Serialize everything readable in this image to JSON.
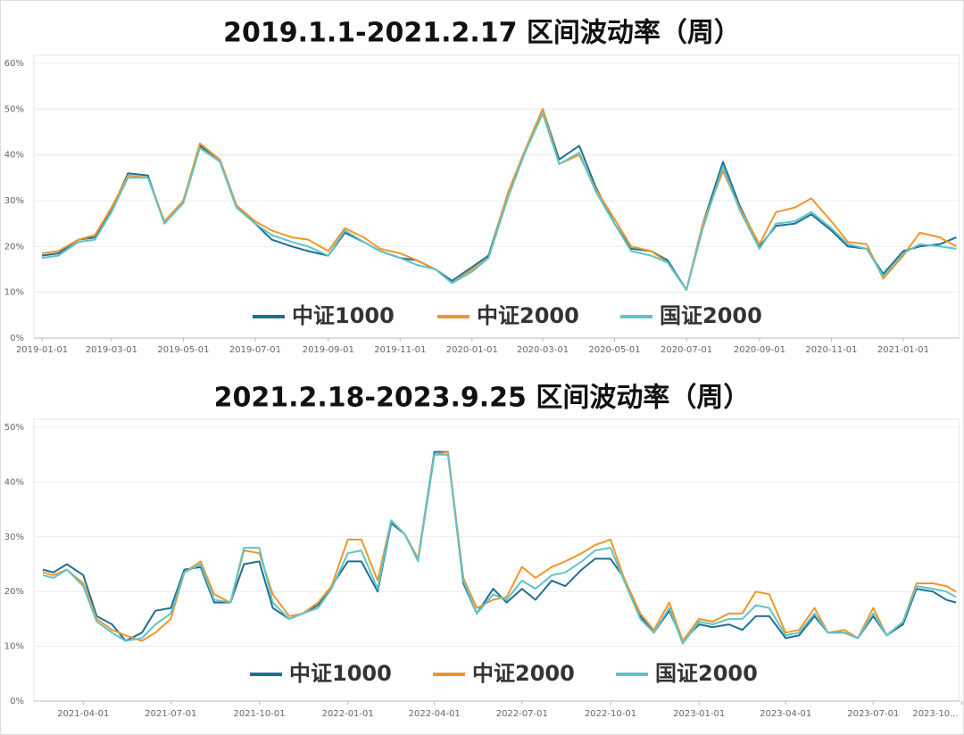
{
  "chart_data": [
    {
      "type": "line",
      "title": "2019.1.1-2021.2.17 区间波动率（周）",
      "x": [
        "2019-01-01",
        "2019-01-15",
        "2019-02-01",
        "2019-02-15",
        "2019-03-01",
        "2019-03-15",
        "2019-04-01",
        "2019-04-15",
        "2019-05-01",
        "2019-05-15",
        "2019-06-01",
        "2019-06-15",
        "2019-07-01",
        "2019-07-15",
        "2019-08-01",
        "2019-08-15",
        "2019-09-01",
        "2019-09-15",
        "2019-10-01",
        "2019-10-15",
        "2019-11-01",
        "2019-11-15",
        "2019-12-01",
        "2019-12-15",
        "2020-01-01",
        "2020-01-15",
        "2020-02-01",
        "2020-02-15",
        "2020-03-01",
        "2020-03-15",
        "2020-04-01",
        "2020-04-15",
        "2020-05-01",
        "2020-05-15",
        "2020-06-01",
        "2020-06-15",
        "2020-07-01",
        "2020-07-15",
        "2020-08-01",
        "2020-08-15",
        "2020-09-01",
        "2020-09-15",
        "2020-10-01",
        "2020-10-15",
        "2020-11-01",
        "2020-11-15",
        "2020-12-01",
        "2020-12-15",
        "2021-01-01",
        "2021-01-15",
        "2021-02-01",
        "2021-02-15"
      ],
      "series": [
        {
          "name": "中证1000",
          "color": "#1f6e94",
          "values": [
            18,
            18.5,
            21.5,
            22,
            28,
            36,
            35.5,
            25,
            30,
            42,
            39,
            29,
            25,
            21.5,
            20,
            19,
            18,
            23,
            21,
            19,
            17.5,
            17,
            15,
            12.5,
            15.5,
            18,
            32,
            41,
            50,
            39,
            42,
            33,
            25,
            19.5,
            19,
            17,
            10.5,
            25,
            38.5,
            29,
            20,
            24.5,
            25,
            27,
            23.5,
            20,
            19.5,
            14,
            19,
            20,
            20.5,
            22
          ]
        },
        {
          "name": "中证2000",
          "color": "#f0962a",
          "values": [
            18.5,
            19,
            21.5,
            22.5,
            28.5,
            35.5,
            35,
            25.5,
            30,
            42.5,
            39,
            29,
            25.5,
            23.5,
            22,
            21.5,
            19,
            24,
            22,
            19.5,
            18.5,
            17,
            15,
            12,
            15,
            17.5,
            32,
            41,
            50,
            38,
            40,
            32.5,
            26,
            20,
            19,
            16.5,
            10.5,
            25,
            36.5,
            28.5,
            20.5,
            27.5,
            28.5,
            30.5,
            25.5,
            21,
            20.5,
            13,
            18,
            23,
            22,
            20
          ]
        },
        {
          "name": "国证2000",
          "color": "#5fc4c8",
          "values": [
            17.5,
            18,
            21,
            21.5,
            27.5,
            35,
            35,
            25,
            29.5,
            41.5,
            38.5,
            28.5,
            25,
            22.5,
            21,
            20,
            18,
            23.5,
            21,
            19,
            17.5,
            16,
            15,
            12,
            14.5,
            17.5,
            31,
            40.5,
            49,
            38,
            40.5,
            32,
            25,
            19,
            18,
            16.5,
            10.5,
            24,
            37.5,
            28,
            19.5,
            25,
            25.5,
            27.5,
            24,
            20.5,
            19.5,
            13.5,
            18.5,
            20.5,
            20,
            19.5
          ]
        }
      ],
      "xlim": [
        "2019-01-01",
        "2021-02-17"
      ],
      "xticks": [
        "2019-01-01",
        "2019-03-01",
        "2019-05-01",
        "2019-07-01",
        "2019-09-01",
        "2019-11-01",
        "2020-01-01",
        "2020-03-01",
        "2020-05-01",
        "2020-07-01",
        "2020-09-01",
        "2020-11-01",
        "2021-01-01"
      ],
      "ylim": [
        0,
        60
      ],
      "yticks": [
        {
          "value": 0,
          "label": "0%"
        },
        {
          "value": 10,
          "label": "10%"
        },
        {
          "value": 20,
          "label": "20%"
        },
        {
          "value": 30,
          "label": "30%"
        },
        {
          "value": 40,
          "label": "40%"
        },
        {
          "value": 50,
          "label": "50%"
        },
        {
          "value": 60,
          "label": "60%"
        }
      ],
      "grid": true,
      "legend": "bottom"
    },
    {
      "type": "line",
      "title": "2021.2.18-2023.9.25 区间波动率（周）",
      "x": [
        "2021-02-18",
        "2021-03-01",
        "2021-03-15",
        "2021-04-01",
        "2021-04-15",
        "2021-05-01",
        "2021-05-15",
        "2021-06-01",
        "2021-06-15",
        "2021-07-01",
        "2021-07-15",
        "2021-08-01",
        "2021-08-15",
        "2021-09-01",
        "2021-09-15",
        "2021-10-01",
        "2021-10-15",
        "2021-11-01",
        "2021-11-15",
        "2021-12-01",
        "2021-12-15",
        "2022-01-01",
        "2022-01-15",
        "2022-02-01",
        "2022-02-15",
        "2022-03-01",
        "2022-03-15",
        "2022-04-01",
        "2022-04-15",
        "2022-05-01",
        "2022-05-15",
        "2022-06-01",
        "2022-06-15",
        "2022-07-01",
        "2022-07-15",
        "2022-08-01",
        "2022-08-15",
        "2022-09-01",
        "2022-09-15",
        "2022-10-01",
        "2022-10-15",
        "2022-11-01",
        "2022-11-15",
        "2022-12-01",
        "2022-12-15",
        "2023-01-01",
        "2023-01-15",
        "2023-02-01",
        "2023-02-15",
        "2023-03-01",
        "2023-03-15",
        "2023-04-01",
        "2023-04-15",
        "2023-05-01",
        "2023-05-15",
        "2023-06-01",
        "2023-06-15",
        "2023-07-01",
        "2023-07-15",
        "2023-08-01",
        "2023-08-15",
        "2023-09-01",
        "2023-09-15",
        "2023-09-25"
      ],
      "series": [
        {
          "name": "中证1000",
          "color": "#1f6e94",
          "values": [
            24,
            23.5,
            25,
            23,
            15.5,
            14,
            11,
            12.5,
            16.5,
            17,
            24,
            24.5,
            18,
            18,
            25,
            25.5,
            17,
            15,
            16,
            17.5,
            21,
            25.5,
            25.5,
            20,
            32.5,
            30.5,
            26,
            45.5,
            45.5,
            21.5,
            16,
            20.5,
            18,
            20.5,
            18.5,
            22,
            21,
            24,
            26,
            26,
            22.5,
            15.5,
            12.5,
            16.5,
            11,
            14,
            13.5,
            14,
            13,
            15.5,
            15.5,
            11.5,
            12,
            15.5,
            12.5,
            12.5,
            11.5,
            15.5,
            12,
            14,
            20.5,
            20,
            18.5,
            18
          ]
        },
        {
          "name": "中证2000",
          "color": "#f0962a",
          "values": [
            23.5,
            23,
            24,
            21.5,
            15,
            13,
            12,
            11,
            12.5,
            15,
            23.5,
            25.5,
            19.5,
            18,
            27.5,
            27,
            19.5,
            15.5,
            16,
            18,
            21,
            29.5,
            29.5,
            22,
            33,
            30.5,
            26,
            45,
            45.5,
            22.5,
            17,
            18.5,
            19,
            24.5,
            22.5,
            24.5,
            25.5,
            27,
            28.5,
            29.5,
            22.5,
            16,
            13,
            18,
            11,
            15,
            14.5,
            16,
            16,
            20,
            19.5,
            12.5,
            13,
            17,
            12.5,
            13,
            11.5,
            17,
            12,
            14.5,
            21.5,
            21.5,
            21,
            20
          ]
        },
        {
          "name": "国证2000",
          "color": "#5fc4c8",
          "values": [
            23,
            22.5,
            24,
            21,
            14.5,
            12.5,
            11,
            11.5,
            14,
            16,
            23.5,
            25,
            18.5,
            18,
            28,
            28,
            18,
            15,
            16,
            17,
            20.5,
            27,
            27.5,
            20.5,
            33,
            30.5,
            25.5,
            45,
            45,
            22,
            16,
            19.5,
            18.5,
            22,
            20.5,
            23,
            23.5,
            25.5,
            27.5,
            28,
            22,
            15,
            12.5,
            17,
            10.5,
            14.5,
            14,
            15,
            15,
            17.5,
            17,
            12,
            12.5,
            16,
            12.5,
            12.5,
            11.5,
            16,
            12,
            14.5,
            21,
            20.5,
            20,
            19
          ]
        }
      ],
      "xlim": [
        "2021-02-18",
        "2023-09-25"
      ],
      "xticks": [
        "2021-04-01",
        "2021-07-01",
        "2021-10-01",
        "2022-01-01",
        "2022-04-01",
        "2022-07-01",
        "2022-10-01",
        "2023-01-01",
        "2023-04-01",
        "2023-07-01",
        {
          "value": "2023-10-01",
          "label": "2023-10..."
        }
      ],
      "ylim": [
        0,
        50
      ],
      "yticks": [
        {
          "value": 0,
          "label": "0%"
        },
        {
          "value": 10,
          "label": "10%"
        },
        {
          "value": 20,
          "label": "20%"
        },
        {
          "value": 30,
          "label": "30%"
        },
        {
          "value": 40,
          "label": "40%"
        },
        {
          "value": 50,
          "label": "50%"
        }
      ],
      "grid": true,
      "legend": "bottom"
    }
  ]
}
